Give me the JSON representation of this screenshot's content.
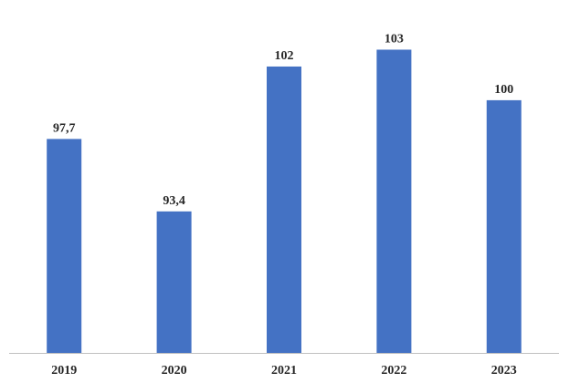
{
  "chart_data": {
    "type": "bar",
    "categories": [
      "2019",
      "2020",
      "2021",
      "2022",
      "2023"
    ],
    "values": [
      97.7,
      93.4,
      102,
      103,
      100
    ],
    "data_labels": [
      "97,7",
      "93,4",
      "102",
      "103",
      "100"
    ],
    "title": "",
    "xlabel": "",
    "ylabel": "",
    "ylim": [
      85,
      104
    ],
    "grid": false,
    "legend": "none",
    "bar_color": "#4472C4",
    "axis_color": "#bfbfbf"
  }
}
